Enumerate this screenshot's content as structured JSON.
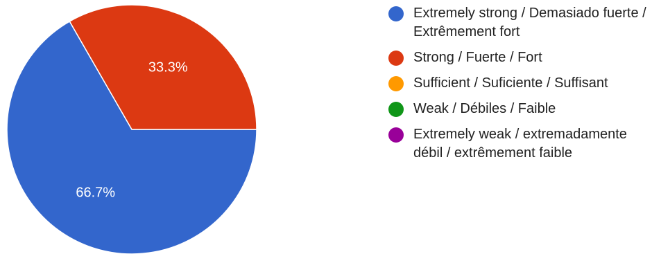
{
  "chart_data": {
    "type": "pie",
    "series": [
      {
        "name": "Extremely strong / Demasiado fuerte / Extrêmement fort",
        "value": 66.7,
        "label": "66.7%",
        "color": "#3366CC"
      },
      {
        "name": "Strong / Fuerte / Fort",
        "value": 33.3,
        "label": "33.3%",
        "color": "#DC3912"
      },
      {
        "name": "Sufficient / Suficiente / Suffisant",
        "value": 0,
        "label": "",
        "color": "#FF9900"
      },
      {
        "name": "Weak / Débiles / Faible",
        "value": 0,
        "label": "",
        "color": "#109618"
      },
      {
        "name": "Extremely weak / extremadamente débil / extrêmement faible",
        "value": 0,
        "label": "",
        "color": "#990099"
      }
    ],
    "legend_position": "right"
  }
}
